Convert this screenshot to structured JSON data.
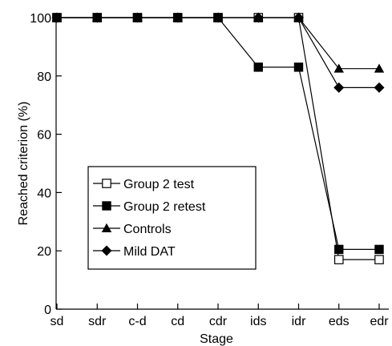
{
  "chart_data": {
    "type": "line",
    "title": "",
    "xlabel": "Stage",
    "ylabel": "Reached criterion (%)",
    "ylim": [
      0,
      100
    ],
    "yticks": [
      0,
      20,
      40,
      60,
      80,
      100
    ],
    "categories": [
      "sd",
      "sdr",
      "c-d",
      "cd",
      "cdr",
      "ids",
      "idr",
      "eds",
      "edr"
    ],
    "grid": false,
    "legend_position": "bottom-left",
    "series": [
      {
        "name": "Group 2 test",
        "marker": "square-open",
        "values": [
          100,
          100,
          100,
          100,
          100,
          100,
          100,
          17,
          17
        ]
      },
      {
        "name": "Group 2 retest",
        "marker": "square-filled",
        "values": [
          100,
          100,
          100,
          100,
          100,
          83,
          83,
          20.5,
          20.5
        ]
      },
      {
        "name": "Controls",
        "marker": "triangle-filled",
        "values": [
          100,
          100,
          100,
          100,
          100,
          100,
          100,
          82.5,
          82.5
        ]
      },
      {
        "name": "Mild DAT",
        "marker": "diamond-filled",
        "values": [
          100,
          100,
          100,
          100,
          100,
          100,
          100,
          76,
          76
        ]
      }
    ],
    "color": "#000000"
  }
}
